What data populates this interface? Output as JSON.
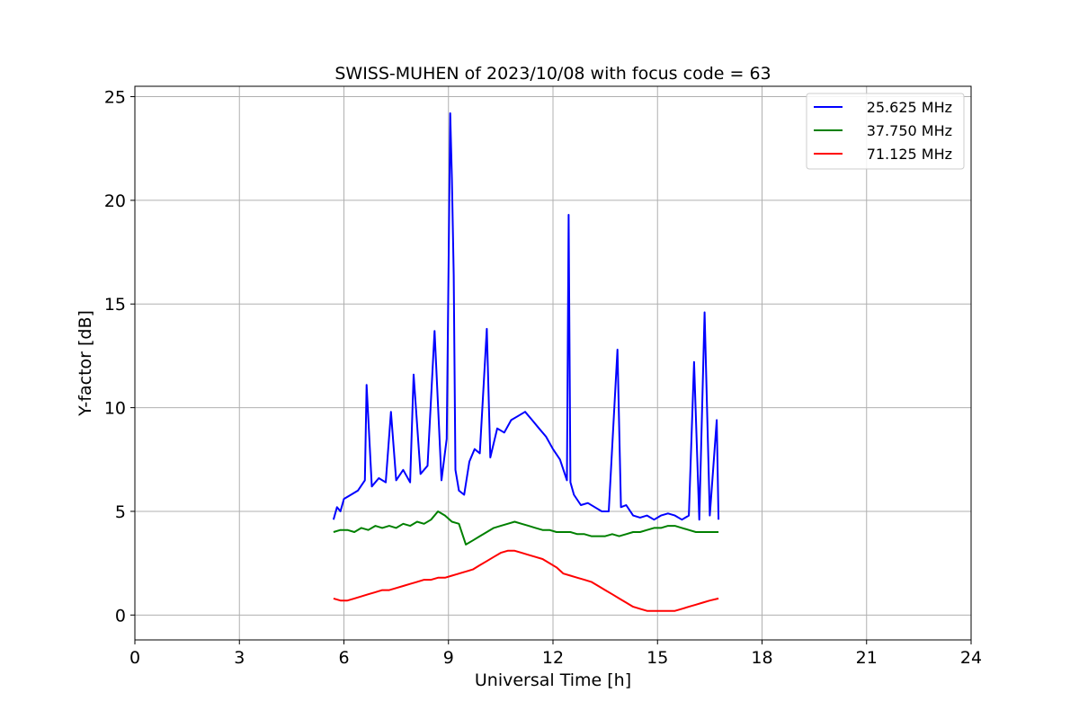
{
  "chart_data": {
    "type": "line",
    "title": "SWISS-MUHEN of 2023/10/08 with focus code = 63",
    "xlabel": "Universal Time [h]",
    "ylabel": "Y-factor [dB]",
    "xlim": [
      0,
      24
    ],
    "ylim": [
      -1.2,
      25.5
    ],
    "xticks": [
      0,
      3,
      6,
      9,
      12,
      15,
      18,
      21,
      24
    ],
    "yticks": [
      0,
      5,
      10,
      15,
      20,
      25
    ],
    "grid": true,
    "legend_position": "top-right",
    "series": [
      {
        "name": "25.625 MHz",
        "color": "#0000ff",
        "x": [
          5.7,
          5.8,
          5.9,
          6.0,
          6.2,
          6.4,
          6.6,
          6.65,
          6.8,
          7.0,
          7.2,
          7.35,
          7.5,
          7.7,
          7.9,
          8.0,
          8.2,
          8.4,
          8.6,
          8.8,
          8.95,
          9.05,
          9.1,
          9.15,
          9.2,
          9.3,
          9.45,
          9.6,
          9.75,
          9.9,
          10.1,
          10.2,
          10.4,
          10.6,
          10.8,
          11.0,
          11.2,
          11.4,
          11.6,
          11.8,
          12.0,
          12.2,
          12.4,
          12.45,
          12.5,
          12.6,
          12.8,
          13.0,
          13.2,
          13.4,
          13.6,
          13.85,
          13.95,
          14.1,
          14.3,
          14.5,
          14.7,
          14.9,
          15.1,
          15.3,
          15.5,
          15.7,
          15.9,
          16.05,
          16.2,
          16.35,
          16.5,
          16.7,
          16.75
        ],
        "y": [
          4.6,
          5.2,
          5.0,
          5.6,
          5.8,
          6.0,
          6.5,
          11.1,
          6.2,
          6.6,
          6.4,
          9.8,
          6.5,
          7.0,
          6.4,
          11.6,
          6.8,
          7.2,
          13.7,
          6.5,
          8.5,
          24.2,
          21.0,
          16.4,
          7.0,
          6.0,
          5.8,
          7.4,
          8.0,
          7.8,
          13.8,
          7.6,
          9.0,
          8.8,
          9.4,
          9.6,
          9.8,
          9.4,
          9.0,
          8.6,
          8.0,
          7.5,
          6.5,
          19.3,
          6.4,
          5.8,
          5.3,
          5.4,
          5.2,
          5.0,
          5.0,
          12.8,
          5.2,
          5.3,
          4.8,
          4.7,
          4.8,
          4.6,
          4.8,
          4.9,
          4.8,
          4.6,
          4.8,
          12.2,
          4.6,
          14.6,
          4.8,
          9.4,
          4.6
        ]
      },
      {
        "name": "37.750 MHz",
        "color": "#008000",
        "x": [
          5.7,
          5.9,
          6.1,
          6.3,
          6.5,
          6.7,
          6.9,
          7.1,
          7.3,
          7.5,
          7.7,
          7.9,
          8.1,
          8.3,
          8.5,
          8.7,
          8.9,
          9.1,
          9.3,
          9.5,
          9.7,
          9.9,
          10.1,
          10.3,
          10.5,
          10.7,
          10.9,
          11.1,
          11.3,
          11.5,
          11.7,
          11.9,
          12.1,
          12.3,
          12.5,
          12.7,
          12.9,
          13.1,
          13.3,
          13.5,
          13.7,
          13.9,
          14.1,
          14.3,
          14.5,
          14.7,
          14.9,
          15.1,
          15.3,
          15.5,
          15.7,
          15.9,
          16.1,
          16.3,
          16.5,
          16.75
        ],
        "y": [
          4.0,
          4.1,
          4.1,
          4.0,
          4.2,
          4.1,
          4.3,
          4.2,
          4.3,
          4.2,
          4.4,
          4.3,
          4.5,
          4.4,
          4.6,
          5.0,
          4.8,
          4.5,
          4.4,
          3.4,
          3.6,
          3.8,
          4.0,
          4.2,
          4.3,
          4.4,
          4.5,
          4.4,
          4.3,
          4.2,
          4.1,
          4.1,
          4.0,
          4.0,
          4.0,
          3.9,
          3.9,
          3.8,
          3.8,
          3.8,
          3.9,
          3.8,
          3.9,
          4.0,
          4.0,
          4.1,
          4.2,
          4.2,
          4.3,
          4.3,
          4.2,
          4.1,
          4.0,
          4.0,
          4.0,
          4.0
        ]
      },
      {
        "name": "71.125 MHz",
        "color": "#ff0000",
        "x": [
          5.7,
          5.9,
          6.1,
          6.3,
          6.5,
          6.7,
          6.9,
          7.1,
          7.3,
          7.5,
          7.7,
          7.9,
          8.1,
          8.3,
          8.5,
          8.7,
          8.9,
          9.1,
          9.3,
          9.5,
          9.7,
          9.9,
          10.1,
          10.3,
          10.5,
          10.7,
          10.9,
          11.1,
          11.3,
          11.5,
          11.7,
          11.9,
          12.1,
          12.3,
          12.5,
          12.7,
          12.9,
          13.1,
          13.3,
          13.5,
          13.7,
          13.9,
          14.1,
          14.3,
          14.5,
          14.7,
          14.9,
          15.1,
          15.3,
          15.5,
          15.7,
          15.9,
          16.1,
          16.3,
          16.5,
          16.75
        ],
        "y": [
          0.8,
          0.7,
          0.7,
          0.8,
          0.9,
          1.0,
          1.1,
          1.2,
          1.2,
          1.3,
          1.4,
          1.5,
          1.6,
          1.7,
          1.7,
          1.8,
          1.8,
          1.9,
          2.0,
          2.1,
          2.2,
          2.4,
          2.6,
          2.8,
          3.0,
          3.1,
          3.1,
          3.0,
          2.9,
          2.8,
          2.7,
          2.5,
          2.3,
          2.0,
          1.9,
          1.8,
          1.7,
          1.6,
          1.4,
          1.2,
          1.0,
          0.8,
          0.6,
          0.4,
          0.3,
          0.2,
          0.2,
          0.2,
          0.2,
          0.2,
          0.3,
          0.4,
          0.5,
          0.6,
          0.7,
          0.8
        ]
      }
    ]
  }
}
